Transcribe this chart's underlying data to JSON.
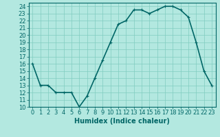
{
  "x": [
    0,
    1,
    2,
    3,
    4,
    5,
    6,
    7,
    8,
    9,
    10,
    11,
    12,
    13,
    14,
    15,
    16,
    17,
    18,
    19,
    20,
    21,
    22,
    23
  ],
  "y": [
    16,
    13,
    13,
    12,
    12,
    12,
    10,
    11.5,
    14,
    16.5,
    19,
    21.5,
    22,
    23.5,
    23.5,
    23,
    23.5,
    24,
    24,
    23.5,
    22.5,
    19,
    15,
    13
  ],
  "line_color": "#006666",
  "marker": "+",
  "marker_size": 3,
  "marker_color": "#006666",
  "bg_color": "#b3e8e0",
  "grid_color": "#80ccc0",
  "xlabel": "Humidex (Indice chaleur)",
  "xlabel_fontsize": 7,
  "ylim": [
    10,
    24.5
  ],
  "xlim": [
    -0.5,
    23.5
  ],
  "yticks": [
    10,
    11,
    12,
    13,
    14,
    15,
    16,
    17,
    18,
    19,
    20,
    21,
    22,
    23,
    24
  ],
  "xticks": [
    0,
    1,
    2,
    3,
    4,
    5,
    6,
    7,
    8,
    9,
    10,
    11,
    12,
    13,
    14,
    15,
    16,
    17,
    18,
    19,
    20,
    21,
    22,
    23
  ],
  "tick_fontsize": 6,
  "linewidth": 1.2
}
